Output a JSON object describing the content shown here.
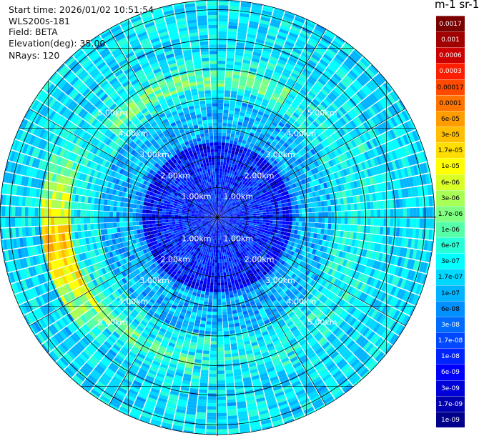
{
  "info": {
    "start_time": "Start time: 2026/01/02 10:51:54",
    "instrument": "WLS200s-181",
    "field": "Field: BETA",
    "elevation": "Elevation(deg): 35.00",
    "nrays": "NRays: 120"
  },
  "colorbar": {
    "title": "m-1 sr-1",
    "labels": [
      "0.0017",
      "0.001",
      "0.0006",
      "0.0003",
      "0.00017",
      "0.0001",
      "6e-05",
      "3e-05",
      "1.7e-05",
      "1e-05",
      "6e-06",
      "3e-06",
      "1.7e-06",
      "1e-06",
      "6e-07",
      "3e-07",
      "1.7e-07",
      "1e-07",
      "6e-08",
      "3e-08",
      "1.7e-08",
      "1e-08",
      "6e-09",
      "3e-09",
      "1.7e-09",
      "1e-09"
    ],
    "colors": [
      "#7a0000",
      "#a00000",
      "#cc0000",
      "#ff1e00",
      "#ff4a00",
      "#ff7400",
      "#ff9c00",
      "#ffbe00",
      "#ffdd00",
      "#ffff00",
      "#d8ff26",
      "#a8ff56",
      "#80ff80",
      "#56ffa8",
      "#26ffd8",
      "#00ffff",
      "#00d8ff",
      "#00b4ff",
      "#0090ff",
      "#006cff",
      "#0048ff",
      "#0024ff",
      "#0000ff",
      "#0000d8",
      "#0000b0",
      "#00008b"
    ]
  },
  "chart_data": {
    "type": "heatmap",
    "projection": "polar (PPI scan)",
    "field": "BETA",
    "elevation_deg": 35.0,
    "n_rays": 120,
    "range_ring_labels_km": [
      1.0,
      2.0,
      3.0,
      4.0,
      5.0
    ],
    "range_ring_label_text": [
      "1.00km",
      "2.00km",
      "3.00km",
      "4.00km",
      "5.00km"
    ],
    "color_scale": "log",
    "value_range": [
      1e-09,
      0.0017
    ],
    "regions": [
      {
        "range_km": [
          0,
          2.5
        ],
        "typical_beta": 1e-08
      },
      {
        "range_km": [
          2.5,
          4.0
        ],
        "typical_beta": 1e-07
      },
      {
        "range_km": [
          4.0,
          5.5
        ],
        "typical_beta": 3e-07
      },
      {
        "sector": "west",
        "range_km": [
          5.0,
          5.5
        ],
        "typical_beta": 3e-05
      }
    ]
  }
}
